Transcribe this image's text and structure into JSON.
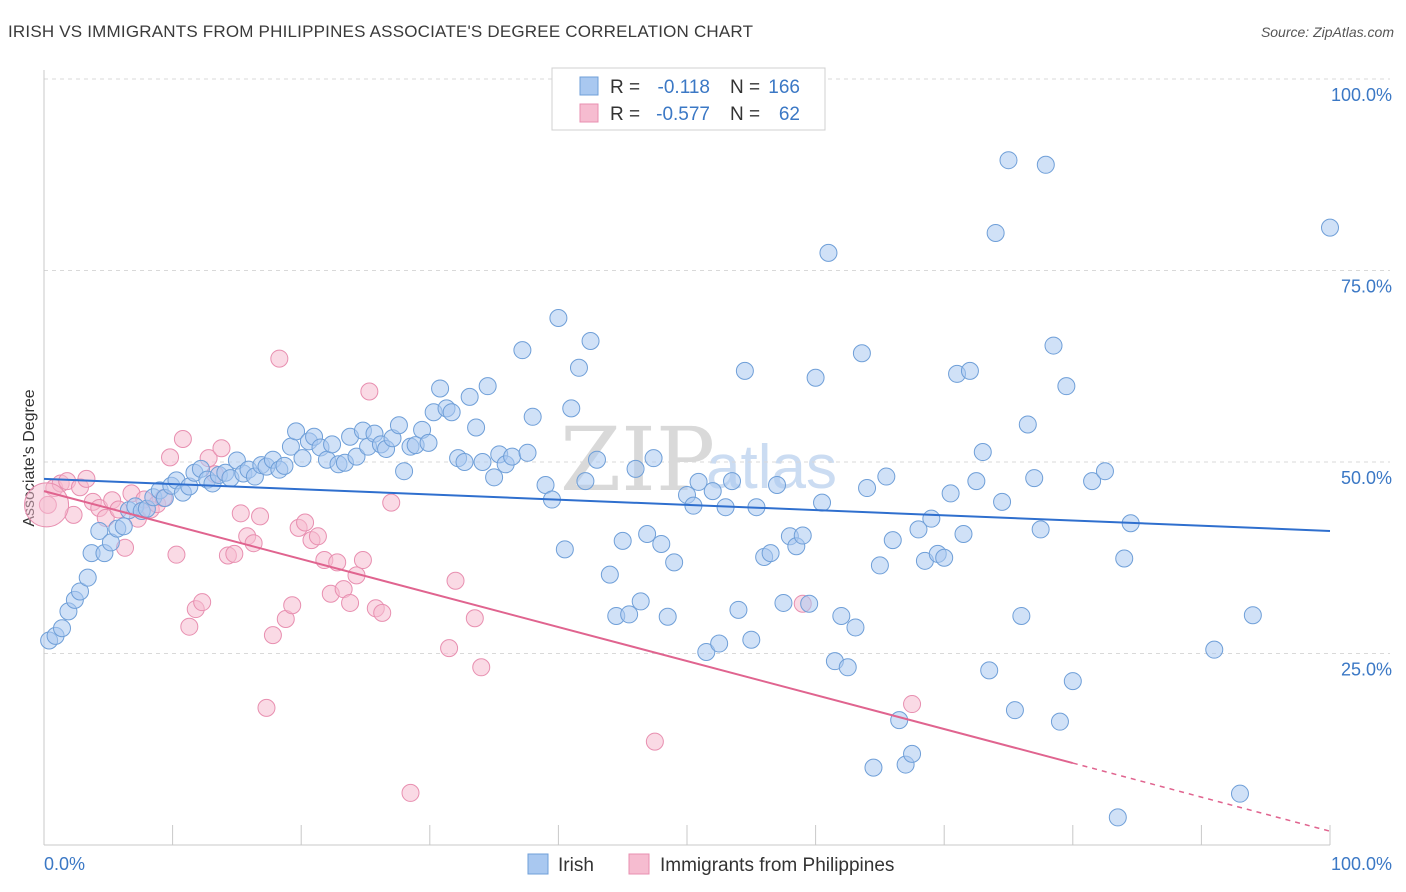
{
  "title": "IRISH VS IMMIGRANTS FROM PHILIPPINES ASSOCIATE'S DEGREE CORRELATION CHART",
  "source": "Source: ZipAtlas.com",
  "watermark": {
    "zip": "ZIP",
    "atlas": "atlas"
  },
  "colors": {
    "blue_fill": "#a9c8f0",
    "blue_stroke": "#6f9fd8",
    "blue_line": "#2f6fce",
    "pink_fill": "#f6bcd0",
    "pink_stroke": "#e88fb0",
    "pink_line": "#e0648f",
    "tick_text": "#3b78c5",
    "grid": "#d9d9d9"
  },
  "legend": {
    "rows": [
      {
        "r_label": "R =",
        "r_value": "-0.118",
        "n_label": "N =",
        "n_value": "166"
      },
      {
        "r_label": "R =",
        "r_value": "-0.577",
        "n_label": "N =",
        "n_value": "62"
      }
    ]
  },
  "chart_data": {
    "type": "scatter",
    "title": "IRISH VS IMMIGRANTS FROM PHILIPPINES ASSOCIATE'S DEGREE CORRELATION CHART",
    "xlabel": "",
    "ylabel": "Associate's Degree",
    "xlim": [
      0,
      100
    ],
    "ylim": [
      0,
      100
    ],
    "x_tick_labels": [
      "0.0%",
      "100.0%"
    ],
    "y_ticks": [
      25,
      50,
      75,
      100
    ],
    "y_tick_labels": [
      "25.0%",
      "50.0%",
      "75.0%",
      "100.0%"
    ],
    "grid": true,
    "legend_position": "top-center",
    "series": [
      {
        "name": "Irish",
        "color": "#a9c8f0",
        "trend": {
          "x": [
            0,
            100
          ],
          "y": [
            47.8,
            41.0
          ]
        },
        "points": [
          [
            0.4,
            26.7
          ],
          [
            0.9,
            27.3
          ],
          [
            1.4,
            28.3
          ],
          [
            1.9,
            30.5
          ],
          [
            2.4,
            32.0
          ],
          [
            2.8,
            33.1
          ],
          [
            3.4,
            34.9
          ],
          [
            3.7,
            38.1
          ],
          [
            4.3,
            41.0
          ],
          [
            4.7,
            38.1
          ],
          [
            5.2,
            39.5
          ],
          [
            5.7,
            41.3
          ],
          [
            6.2,
            41.6
          ],
          [
            6.6,
            43.7
          ],
          [
            7.1,
            44.2
          ],
          [
            7.6,
            43.6
          ],
          [
            8.0,
            43.9
          ],
          [
            8.5,
            45.4
          ],
          [
            9.0,
            46.3
          ],
          [
            9.4,
            45.3
          ],
          [
            9.9,
            46.9
          ],
          [
            10.3,
            47.6
          ],
          [
            10.8,
            46.0
          ],
          [
            11.3,
            46.8
          ],
          [
            11.7,
            48.6
          ],
          [
            12.2,
            49.1
          ],
          [
            12.7,
            47.7
          ],
          [
            13.1,
            47.2
          ],
          [
            13.6,
            48.3
          ],
          [
            14.1,
            48.6
          ],
          [
            14.5,
            47.9
          ],
          [
            15.0,
            50.2
          ],
          [
            15.5,
            48.5
          ],
          [
            15.9,
            49.0
          ],
          [
            16.4,
            48.1
          ],
          [
            16.9,
            49.6
          ],
          [
            17.3,
            49.4
          ],
          [
            17.8,
            50.3
          ],
          [
            18.3,
            49.0
          ],
          [
            18.7,
            49.5
          ],
          [
            19.2,
            52.0
          ],
          [
            19.6,
            54.0
          ],
          [
            20.1,
            50.5
          ],
          [
            20.6,
            52.7
          ],
          [
            21.0,
            53.3
          ],
          [
            21.5,
            51.9
          ],
          [
            22.0,
            50.3
          ],
          [
            22.4,
            52.3
          ],
          [
            22.9,
            49.7
          ],
          [
            23.4,
            49.9
          ],
          [
            23.8,
            53.3
          ],
          [
            24.3,
            50.7
          ],
          [
            24.8,
            54.1
          ],
          [
            25.2,
            52.0
          ],
          [
            25.7,
            53.7
          ],
          [
            26.2,
            52.3
          ],
          [
            26.6,
            51.7
          ],
          [
            27.1,
            53.1
          ],
          [
            27.6,
            54.8
          ],
          [
            28.0,
            48.8
          ],
          [
            28.5,
            52.0
          ],
          [
            28.9,
            52.2
          ],
          [
            29.4,
            54.2
          ],
          [
            29.9,
            52.5
          ],
          [
            30.3,
            56.5
          ],
          [
            30.8,
            59.6
          ],
          [
            31.3,
            57.0
          ],
          [
            31.7,
            56.5
          ],
          [
            32.2,
            50.5
          ],
          [
            32.7,
            50.0
          ],
          [
            33.1,
            58.5
          ],
          [
            33.6,
            54.5
          ],
          [
            34.1,
            50.0
          ],
          [
            34.5,
            59.9
          ],
          [
            35.0,
            48.0
          ],
          [
            35.4,
            51.0
          ],
          [
            35.9,
            49.7
          ],
          [
            36.4,
            50.7
          ],
          [
            37.2,
            64.6
          ],
          [
            37.6,
            51.2
          ],
          [
            38.0,
            55.9
          ],
          [
            39.0,
            47.0
          ],
          [
            39.5,
            45.1
          ],
          [
            40.0,
            68.8
          ],
          [
            40.5,
            38.6
          ],
          [
            41.0,
            57.0
          ],
          [
            41.6,
            62.3
          ],
          [
            42.1,
            47.5
          ],
          [
            42.5,
            65.8
          ],
          [
            43.0,
            50.3
          ],
          [
            44.0,
            35.3
          ],
          [
            44.5,
            29.9
          ],
          [
            45.0,
            39.7
          ],
          [
            45.5,
            30.1
          ],
          [
            46.0,
            49.1
          ],
          [
            46.4,
            31.8
          ],
          [
            46.9,
            40.6
          ],
          [
            47.4,
            50.5
          ],
          [
            48.0,
            39.3
          ],
          [
            48.5,
            29.8
          ],
          [
            49.0,
            36.9
          ],
          [
            50.0,
            45.7
          ],
          [
            50.5,
            44.3
          ],
          [
            50.9,
            47.4
          ],
          [
            51.5,
            25.2
          ],
          [
            52.0,
            46.2
          ],
          [
            52.5,
            26.3
          ],
          [
            53.0,
            44.1
          ],
          [
            53.5,
            47.5
          ],
          [
            54.0,
            30.7
          ],
          [
            54.5,
            61.9
          ],
          [
            55.0,
            26.8
          ],
          [
            55.4,
            44.1
          ],
          [
            56.0,
            37.6
          ],
          [
            56.5,
            38.1
          ],
          [
            57.0,
            47.0
          ],
          [
            57.5,
            31.6
          ],
          [
            58.0,
            40.3
          ],
          [
            58.5,
            39.0
          ],
          [
            59.0,
            40.4
          ],
          [
            59.5,
            31.5
          ],
          [
            60.0,
            61.0
          ],
          [
            60.5,
            44.7
          ],
          [
            61.0,
            77.3
          ],
          [
            61.5,
            24.0
          ],
          [
            62.0,
            29.9
          ],
          [
            62.5,
            23.2
          ],
          [
            63.1,
            28.4
          ],
          [
            63.6,
            64.2
          ],
          [
            64.0,
            46.6
          ],
          [
            64.5,
            10.1
          ],
          [
            65.0,
            36.5
          ],
          [
            65.5,
            48.1
          ],
          [
            66.0,
            39.8
          ],
          [
            66.5,
            16.3
          ],
          [
            67.0,
            10.5
          ],
          [
            67.5,
            11.9
          ],
          [
            68.0,
            41.2
          ],
          [
            68.5,
            37.1
          ],
          [
            69.0,
            42.6
          ],
          [
            69.5,
            38.0
          ],
          [
            70.0,
            37.5
          ],
          [
            70.5,
            45.9
          ],
          [
            71.0,
            61.5
          ],
          [
            71.5,
            40.6
          ],
          [
            72.0,
            61.9
          ],
          [
            72.5,
            47.5
          ],
          [
            73.0,
            51.3
          ],
          [
            73.5,
            22.8
          ],
          [
            74.0,
            79.9
          ],
          [
            74.5,
            44.8
          ],
          [
            75.0,
            89.4
          ],
          [
            75.5,
            17.6
          ],
          [
            76.0,
            29.9
          ],
          [
            76.5,
            54.9
          ],
          [
            77.0,
            47.9
          ],
          [
            77.5,
            41.2
          ],
          [
            77.9,
            88.8
          ],
          [
            78.5,
            65.2
          ],
          [
            79.0,
            16.1
          ],
          [
            79.5,
            59.9
          ],
          [
            80.0,
            21.4
          ],
          [
            81.5,
            47.5
          ],
          [
            82.5,
            48.8
          ],
          [
            83.5,
            3.6
          ],
          [
            84.0,
            37.4
          ],
          [
            84.5,
            42.0
          ],
          [
            91.0,
            25.5
          ],
          [
            93.0,
            6.7
          ],
          [
            94.0,
            30.0
          ],
          [
            100.0,
            80.6
          ]
        ]
      },
      {
        "name": "Immigrants from Philippines",
        "color": "#f6bcd0",
        "trend": {
          "x": [
            0,
            80
          ],
          "y": [
            46.2,
            10.7
          ]
        },
        "trend_dashed": {
          "x": [
            80,
            100
          ],
          "y": [
            10.7,
            1.8
          ]
        },
        "points": [
          [
            0.3,
            44.4
          ],
          [
            0.8,
            46.6
          ],
          [
            1.3,
            47.2
          ],
          [
            1.8,
            47.5
          ],
          [
            2.3,
            43.1
          ],
          [
            2.8,
            46.7
          ],
          [
            3.3,
            47.8
          ],
          [
            3.8,
            44.8
          ],
          [
            4.3,
            44.0
          ],
          [
            4.8,
            42.7
          ],
          [
            5.3,
            45.0
          ],
          [
            5.8,
            43.8
          ],
          [
            6.3,
            38.8
          ],
          [
            6.8,
            45.9
          ],
          [
            7.3,
            42.6
          ],
          [
            7.8,
            45.1
          ],
          [
            8.3,
            43.8
          ],
          [
            8.8,
            44.5
          ],
          [
            9.3,
            45.3
          ],
          [
            9.8,
            50.6
          ],
          [
            10.3,
            37.9
          ],
          [
            10.8,
            53.0
          ],
          [
            11.3,
            28.5
          ],
          [
            11.8,
            30.8
          ],
          [
            12.3,
            31.7
          ],
          [
            12.8,
            50.5
          ],
          [
            13.3,
            48.4
          ],
          [
            13.8,
            51.8
          ],
          [
            14.3,
            37.8
          ],
          [
            14.8,
            38.0
          ],
          [
            15.3,
            43.3
          ],
          [
            15.8,
            40.3
          ],
          [
            16.3,
            39.4
          ],
          [
            16.8,
            42.9
          ],
          [
            17.3,
            17.9
          ],
          [
            17.8,
            27.4
          ],
          [
            18.3,
            63.5
          ],
          [
            18.8,
            29.5
          ],
          [
            19.3,
            31.3
          ],
          [
            19.8,
            41.4
          ],
          [
            20.3,
            42.1
          ],
          [
            20.8,
            39.8
          ],
          [
            21.3,
            40.3
          ],
          [
            21.8,
            37.2
          ],
          [
            22.3,
            32.8
          ],
          [
            22.8,
            36.9
          ],
          [
            23.3,
            33.4
          ],
          [
            23.8,
            31.6
          ],
          [
            24.3,
            35.2
          ],
          [
            24.8,
            37.2
          ],
          [
            25.3,
            59.2
          ],
          [
            25.8,
            30.9
          ],
          [
            26.3,
            30.3
          ],
          [
            27.0,
            44.7
          ],
          [
            28.5,
            6.8
          ],
          [
            31.5,
            25.7
          ],
          [
            32.0,
            34.5
          ],
          [
            33.5,
            29.6
          ],
          [
            34.0,
            23.2
          ],
          [
            47.5,
            13.5
          ],
          [
            59.0,
            31.5
          ],
          [
            67.5,
            18.4
          ]
        ]
      }
    ]
  },
  "bottom_legend": {
    "items": [
      {
        "label": "Irish"
      },
      {
        "label": "Immigrants from Philippines"
      }
    ]
  }
}
